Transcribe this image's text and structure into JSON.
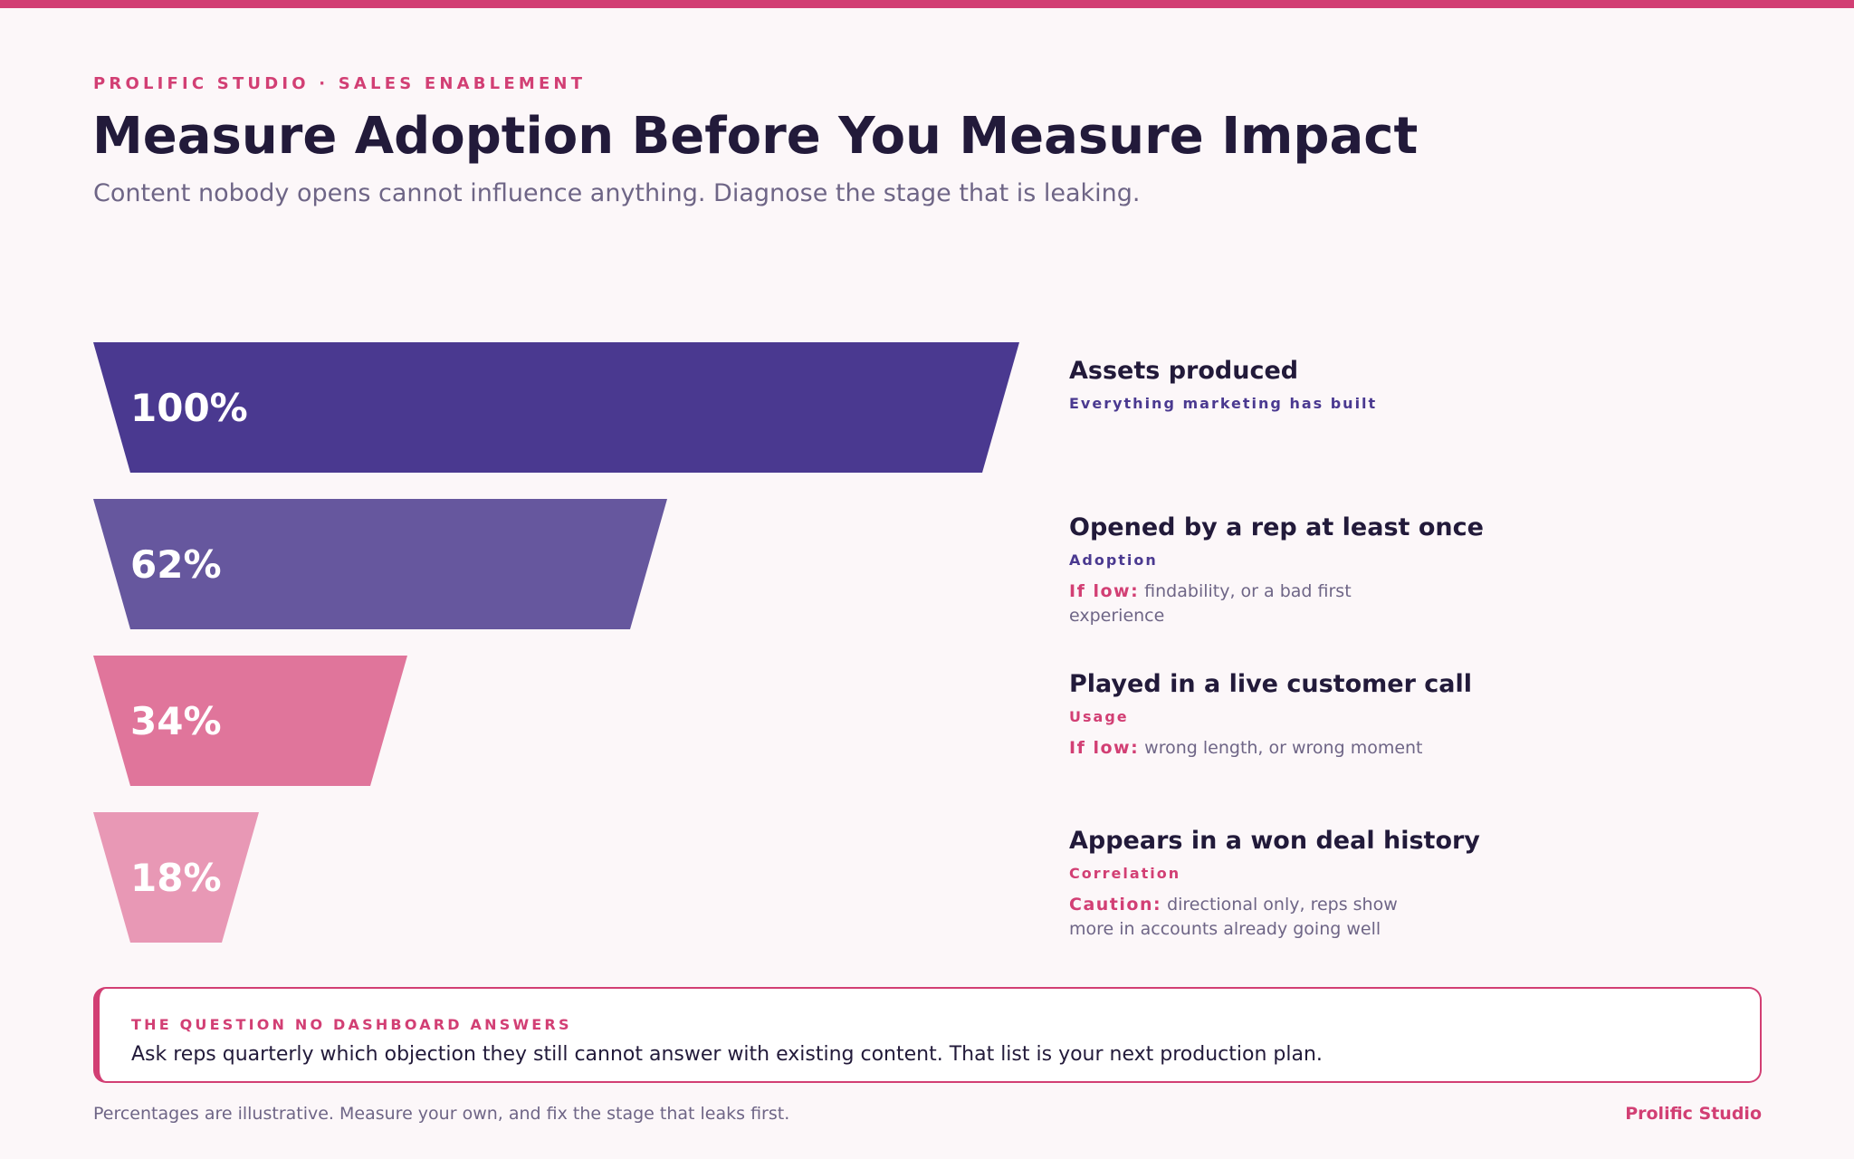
{
  "header": {
    "eyebrow": "PROLIFIC STUDIO · SALES ENABLEMENT",
    "title": "Measure Adoption Before You Measure Impact",
    "subtitle": "Content nobody opens cannot influence anything. Diagnose the stage that is leaking."
  },
  "funnel": {
    "stages": [
      {
        "percent_label": "100%",
        "value": 100,
        "color": "#4a3990",
        "title": "Assets produced",
        "tag": "Everything marketing has built",
        "tag_color": "#4a3990",
        "note_label": "",
        "note": ""
      },
      {
        "percent_label": "62%",
        "value": 62,
        "color": "#66579e",
        "title": "Opened by a rep at least once",
        "tag": "Adoption",
        "tag_color": "#4a3990",
        "note_label": "If low:",
        "note": "findability, or a bad first experience"
      },
      {
        "percent_label": "34%",
        "value": 34,
        "color": "#e0759b",
        "title": "Played in a live customer call",
        "tag": "Usage",
        "tag_color": "#d23f74",
        "note_label": "If low:",
        "note": "wrong length, or wrong moment"
      },
      {
        "percent_label": "18%",
        "value": 18,
        "color": "#e898b5",
        "title": "Appears in a won deal history",
        "tag": "Correlation",
        "tag_color": "#d23f74",
        "note_label": "Caution:",
        "note": "directional only, reps show more in accounts already going well"
      }
    ]
  },
  "callout": {
    "label": "THE QUESTION NO DASHBOARD ANSWERS",
    "text": "Ask reps quarterly which objection they still cannot answer with existing content. That list is your next production plan."
  },
  "footer": {
    "note": "Percentages are illustrative. Measure your own, and fix the stage that leaks first.",
    "brand": "Prolific Studio"
  },
  "colors": {
    "accent": "#d23f74",
    "ink": "#221a3a",
    "muted": "#6e6586",
    "background": "#fcf7f9"
  }
}
